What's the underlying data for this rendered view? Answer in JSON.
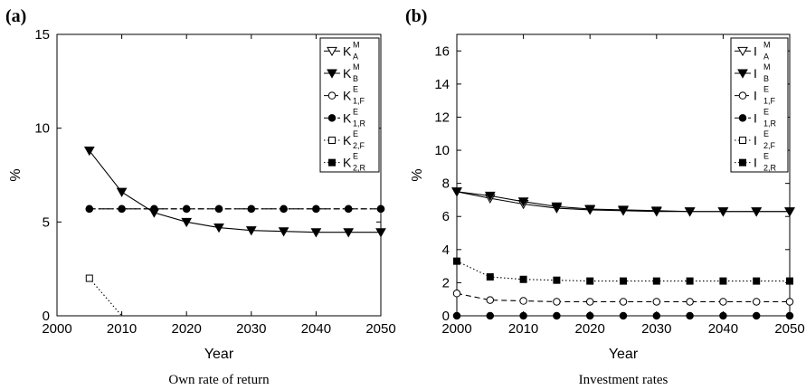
{
  "chart_data": [
    {
      "panel_label": "(a)",
      "type": "line",
      "caption": "Own rate of return",
      "xlabel": "Year",
      "ylabel": "%",
      "xlim": [
        2000,
        2050
      ],
      "ylim": [
        0,
        15
      ],
      "xticks": [
        2000,
        2010,
        2020,
        2030,
        2040,
        2050
      ],
      "yticks": [
        0,
        5,
        10,
        15
      ],
      "legend_position": "top-right",
      "series": [
        {
          "name": "K_A^M",
          "base": "K",
          "sup": "M",
          "sub": "A",
          "marker": "triangle-down-open",
          "line": "solid",
          "x": [],
          "y": []
        },
        {
          "name": "K_B^M",
          "base": "K",
          "sup": "M",
          "sub": "B",
          "marker": "triangle-down-filled",
          "line": "solid",
          "x": [
            2005,
            2010,
            2015,
            2020,
            2025,
            2030,
            2035,
            2040,
            2045,
            2050
          ],
          "y": [
            8.8,
            6.6,
            5.5,
            5.0,
            4.7,
            4.55,
            4.5,
            4.45,
            4.45,
            4.45
          ]
        },
        {
          "name": "K_1,F^E",
          "base": "K",
          "sup": "E",
          "sub": "1,F",
          "marker": "circle-open",
          "line": "dashed",
          "x": [
            2005,
            2010,
            2015,
            2020,
            2025,
            2030,
            2035,
            2040,
            2045,
            2050
          ],
          "y": [
            5.7,
            5.7,
            5.7,
            5.7,
            5.7,
            5.7,
            5.7,
            5.7,
            5.7,
            5.7
          ]
        },
        {
          "name": "K_1,R^E",
          "base": "K",
          "sup": "E",
          "sub": "1,R",
          "marker": "circle-filled",
          "line": "dashdot",
          "x": [
            2005,
            2010,
            2015,
            2020,
            2025,
            2030,
            2035,
            2040,
            2045,
            2050
          ],
          "y": [
            5.7,
            5.7,
            5.7,
            5.7,
            5.7,
            5.7,
            5.7,
            5.7,
            5.7,
            5.7
          ]
        },
        {
          "name": "K_2,F^E",
          "base": "K",
          "sup": "E",
          "sub": "2,F",
          "marker": "square-open",
          "line": "dotted",
          "x": [
            2005,
            2010
          ],
          "y": [
            2.0,
            0.0
          ]
        },
        {
          "name": "K_2,R^E",
          "base": "K",
          "sup": "E",
          "sub": "2,R",
          "marker": "square-filled",
          "line": "dotted",
          "x": [],
          "y": []
        }
      ]
    },
    {
      "panel_label": "(b)",
      "type": "line",
      "caption": "Investment rates",
      "xlabel": "Year",
      "ylabel": "%",
      "xlim": [
        2000,
        2050
      ],
      "ylim": [
        0,
        17
      ],
      "xticks": [
        2000,
        2010,
        2020,
        2030,
        2040,
        2050
      ],
      "yticks": [
        0,
        2,
        4,
        6,
        8,
        10,
        12,
        14,
        16
      ],
      "legend_position": "top-right",
      "series": [
        {
          "name": "I_A^M",
          "base": "I",
          "sup": "M",
          "sub": "A",
          "marker": "triangle-down-open",
          "line": "solid",
          "x": [
            2000,
            2005,
            2010,
            2015,
            2020,
            2025,
            2030,
            2035,
            2040,
            2045,
            2050
          ],
          "y": [
            7.5,
            7.1,
            6.75,
            6.5,
            6.4,
            6.35,
            6.3,
            6.3,
            6.3,
            6.3,
            6.3
          ]
        },
        {
          "name": "I_B^M",
          "base": "I",
          "sup": "M",
          "sub": "B",
          "marker": "triangle-down-filled",
          "line": "solid",
          "x": [
            2000,
            2005,
            2010,
            2015,
            2020,
            2025,
            2030,
            2035,
            2040,
            2045,
            2050
          ],
          "y": [
            7.5,
            7.25,
            6.9,
            6.6,
            6.45,
            6.4,
            6.35,
            6.3,
            6.3,
            6.3,
            6.3
          ]
        },
        {
          "name": "I_1,F^E",
          "base": "I",
          "sup": "E",
          "sub": "1,F",
          "marker": "circle-open",
          "line": "dashed",
          "x": [
            2000,
            2005,
            2010,
            2015,
            2020,
            2025,
            2030,
            2035,
            2040,
            2045,
            2050
          ],
          "y": [
            1.35,
            0.95,
            0.9,
            0.85,
            0.85,
            0.85,
            0.85,
            0.85,
            0.85,
            0.85,
            0.85
          ]
        },
        {
          "name": "I_1,R^E",
          "base": "I",
          "sup": "E",
          "sub": "1,R",
          "marker": "circle-filled",
          "line": "dashdot",
          "x": [
            2000,
            2005,
            2010,
            2015,
            2020,
            2025,
            2030,
            2035,
            2040,
            2045,
            2050
          ],
          "y": [
            0,
            0,
            0,
            0,
            0,
            0,
            0,
            0,
            0,
            0,
            0
          ]
        },
        {
          "name": "I_2,F^E",
          "base": "I",
          "sup": "E",
          "sub": "2,F",
          "marker": "square-open",
          "line": "dotted",
          "x": [],
          "y": []
        },
        {
          "name": "I_2,R^E",
          "base": "I",
          "sup": "E",
          "sub": "2,R",
          "marker": "square-filled",
          "line": "dotted",
          "x": [
            2000,
            2005,
            2010,
            2015,
            2020,
            2025,
            2030,
            2035,
            2040,
            2045,
            2050
          ],
          "y": [
            3.3,
            2.35,
            2.2,
            2.15,
            2.1,
            2.1,
            2.1,
            2.1,
            2.1,
            2.1,
            2.1
          ]
        }
      ]
    }
  ]
}
